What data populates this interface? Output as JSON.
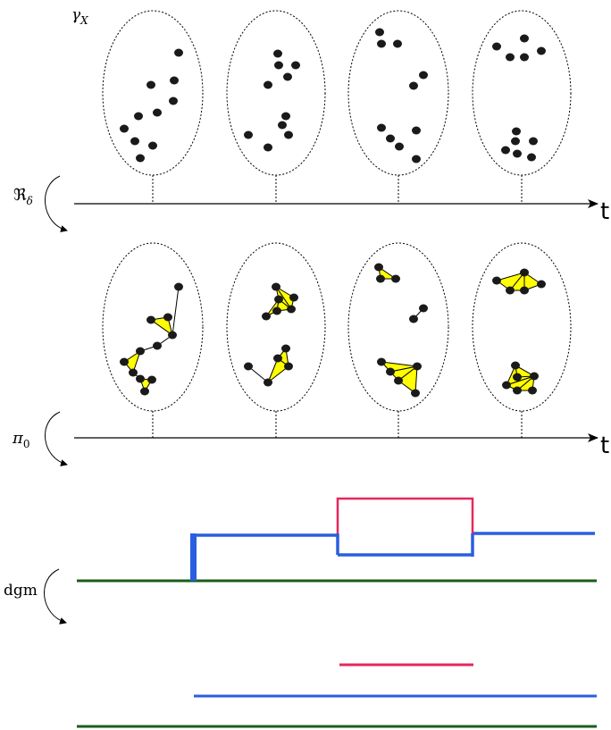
{
  "labels": {
    "gamma": "γ",
    "gamma_sub": "X",
    "r_main": "ℜ",
    "r_sub": "δ",
    "pi_main": "π",
    "pi_sub": "0",
    "dgm": "dgm",
    "t_top": "t",
    "t_mid": "t"
  },
  "colors": {
    "green": "#1a5c1a",
    "blue": "#2a5ee0",
    "pink": "#e6275e",
    "simplex_fill": "#ffff00",
    "point": "#1a1a1a"
  }
}
